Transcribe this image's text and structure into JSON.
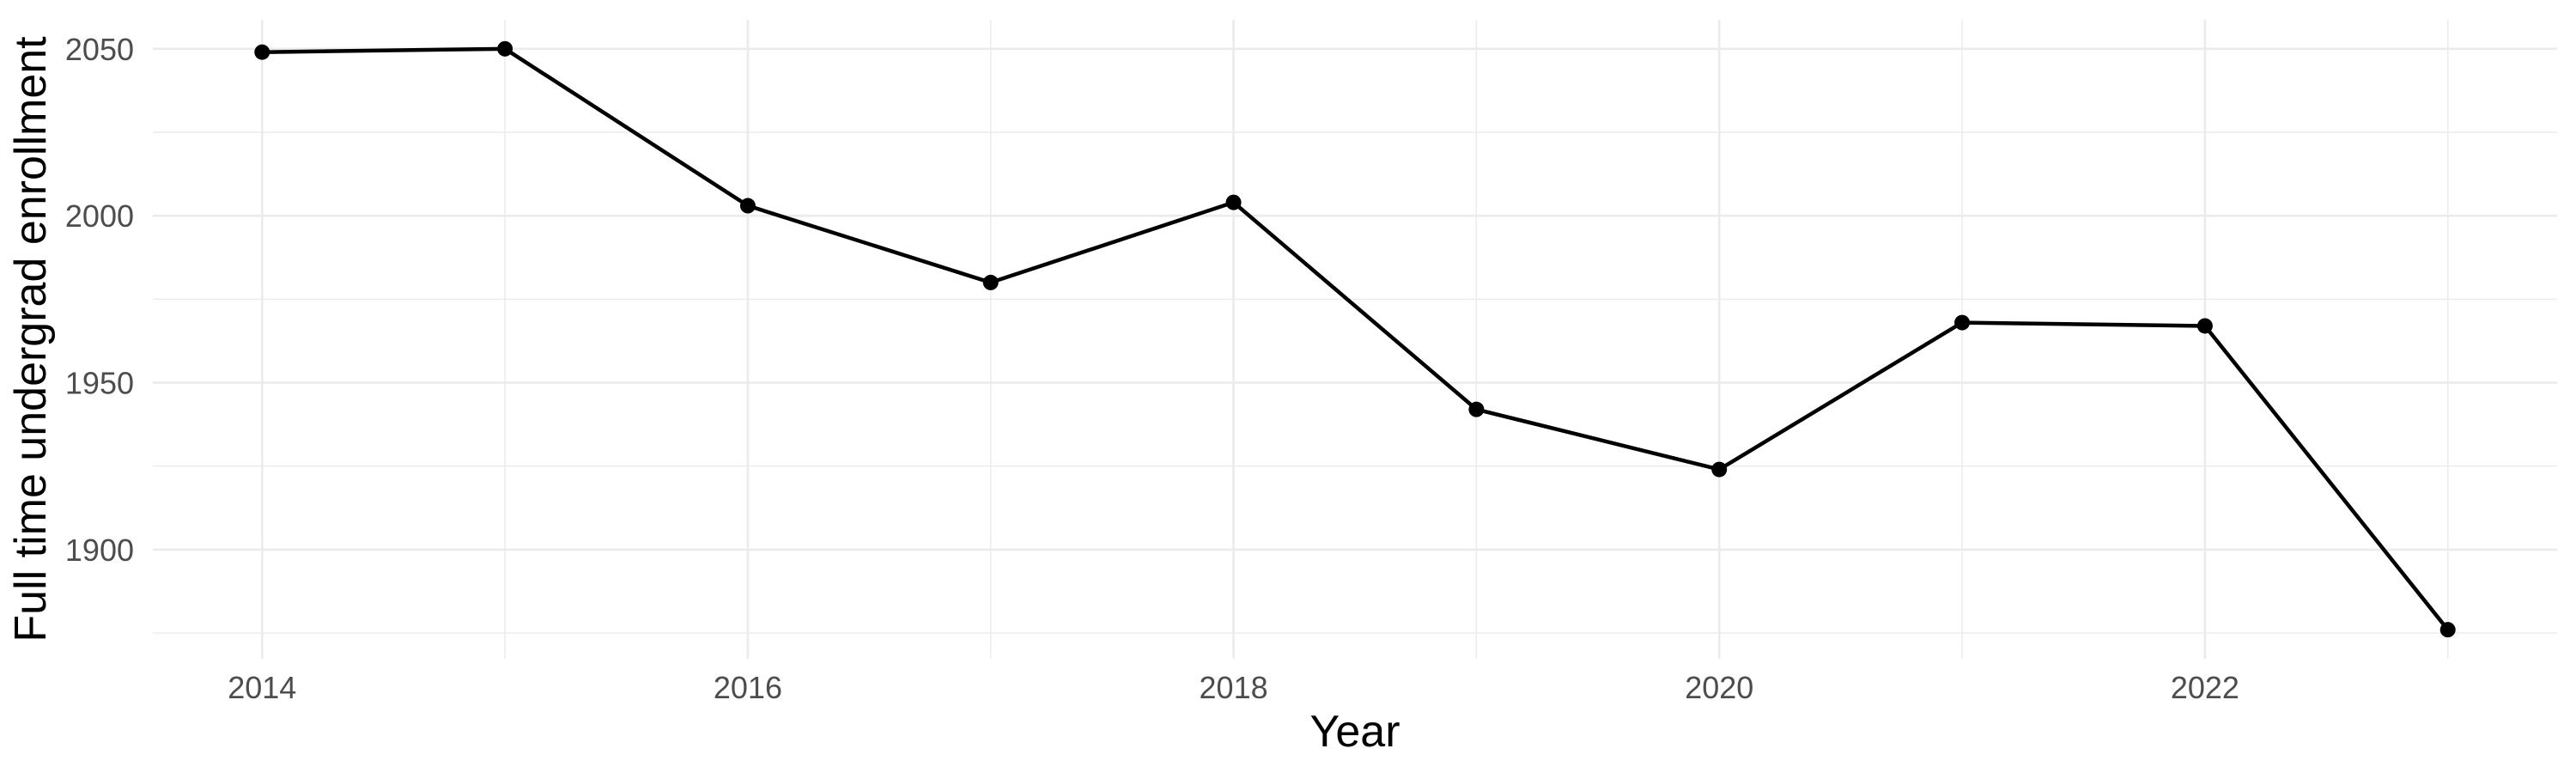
{
  "chart_data": {
    "type": "line",
    "x": [
      2014,
      2015,
      2016,
      2017,
      2018,
      2019,
      2020,
      2021,
      2022,
      2023
    ],
    "values": [
      2049,
      2050,
      2003,
      1980,
      2004,
      1942,
      1924,
      1968,
      1967,
      1876
    ],
    "series": [
      {
        "name": "Full time undergrad enrollment",
        "values": [
          2049,
          2050,
          2003,
          1980,
          2004,
          1942,
          1924,
          1968,
          1967,
          1876
        ]
      }
    ],
    "title": "",
    "xlabel": "Year",
    "ylabel": "Full time undergrad enrollment",
    "xlim": [
      2013.55,
      2023.45
    ],
    "ylim": [
      1867.3,
      2058.7
    ],
    "x_major_ticks": [
      2014,
      2016,
      2018,
      2020,
      2022
    ],
    "x_tick_labels": [
      "2014",
      "2016",
      "2018",
      "2020",
      "2022"
    ],
    "x_minor_gridlines": [
      2015,
      2017,
      2019,
      2021,
      2023
    ],
    "y_major_ticks": [
      2050,
      2000,
      1950,
      1900
    ],
    "y_tick_labels": [
      "2050",
      "2000",
      "1950",
      "1900"
    ],
    "y_minor_gridlines": [
      2025,
      1975,
      1925,
      1875
    ],
    "grid": true,
    "legend": "none",
    "point_marker": "filled-circle",
    "colors": {
      "line": "#000000",
      "point": "#000000",
      "grid": "#EBEBEB",
      "tick_label": "#4D4D4D",
      "axis_title": "#000000",
      "background": "#FFFFFF"
    }
  }
}
